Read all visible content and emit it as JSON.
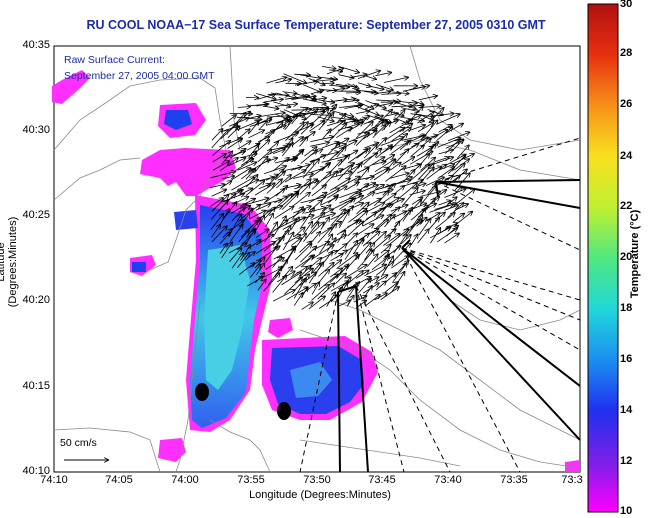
{
  "title": "RU COOL  NOAA−17  Sea Surface Temperature:  September 27, 2005 0310 GMT",
  "annotation_line1": "Raw Surface Current:",
  "annotation_line2": "September 27, 2005 04:00 GMT",
  "scale_label": "50 cm/s",
  "xlabel": "Longitude (Degrees:Minutes)",
  "ylabel": "Latitude (Degrees:Minutes)",
  "x_ticks": [
    "74:10",
    "74:05",
    "74:00",
    "73:55",
    "73:50",
    "73:45",
    "73:40",
    "73:35",
    "73:3"
  ],
  "y_ticks": [
    "40:35",
    "40:30",
    "40:25",
    "40:20",
    "40:15",
    "40:10"
  ],
  "colorbar": {
    "label": "Temperature (°C)",
    "ticks": [
      "30",
      "28",
      "26",
      "24",
      "22",
      "20",
      "18",
      "16",
      "14",
      "12",
      "10"
    ],
    "range": [
      10,
      30
    ]
  },
  "colors": {
    "land": "#ffffff",
    "sst_cold": "#3a20e0",
    "sst_warm": "#40c8e8",
    "mask": "#ff30ff",
    "text_blue": "#1a2bb0"
  }
}
